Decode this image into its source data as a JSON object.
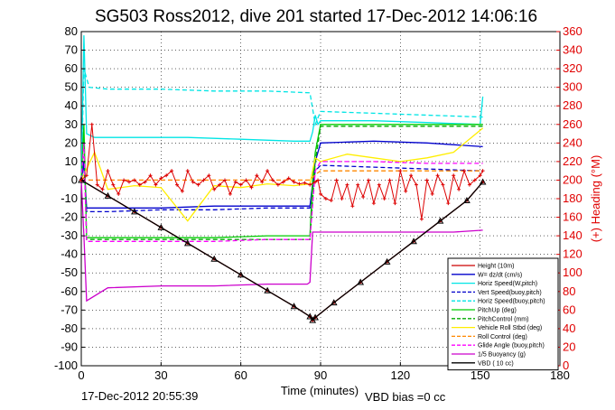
{
  "chart_data": {
    "type": "line",
    "title": "SG503 Ross2012, dive 201 started 17-Dec-2012 14:06:16",
    "xlabel": "Time (minutes)",
    "ylabel": "",
    "y2label": "(+) Heading (°M)",
    "xlim": [
      0,
      180
    ],
    "ylim": [
      -100,
      80
    ],
    "y2lim": [
      0,
      360
    ],
    "xticks": [
      0,
      30,
      60,
      90,
      120,
      150,
      180
    ],
    "yticks": [
      80,
      70,
      60,
      50,
      40,
      30,
      20,
      10,
      0,
      -10,
      -20,
      -30,
      -40,
      -50,
      -60,
      -70,
      -80,
      -90,
      -100
    ],
    "y2ticks": [
      360,
      340,
      320,
      300,
      280,
      260,
      240,
      220,
      200,
      180,
      160,
      140,
      120,
      100,
      80,
      60,
      40,
      20,
      0
    ],
    "grid": true,
    "legend_position": "bottom-right",
    "footer_left": "17-Dec-2012 20:55:39",
    "footer_right": "VBD bias =0 cc",
    "series": [
      {
        "name": "Height (10m)",
        "color": "#cc0000",
        "style": "solid",
        "marker": "dot",
        "x": [
          0,
          10,
          20,
          30,
          40,
          50,
          60,
          70,
          80,
          86,
          87,
          88,
          95,
          105,
          115,
          125,
          135,
          145,
          151
        ],
        "y": [
          0,
          -8.5,
          -17,
          -25.5,
          -34,
          -42.5,
          -51,
          -59.5,
          -68,
          -73.5,
          -75.5,
          -74,
          -66,
          -55,
          -44,
          -33,
          -22,
          -11,
          -1
        ]
      },
      {
        "name": "W= dz/dt (cm/s)",
        "color": "#0000cc",
        "style": "solid",
        "x": [
          0,
          1,
          2,
          10,
          30,
          50,
          70,
          85,
          86,
          88,
          90,
          110,
          130,
          151
        ],
        "y": [
          0,
          10,
          -15,
          -15,
          -15,
          -14,
          -14,
          -14,
          -14,
          10,
          20,
          21,
          20,
          18
        ]
      },
      {
        "name": "Horiz Speed(W,pitch)",
        "color": "#00e5e5",
        "style": "solid",
        "x": [
          0,
          1,
          2,
          5,
          20,
          40,
          60,
          80,
          86,
          87,
          88,
          89,
          90,
          110,
          130,
          150,
          151
        ],
        "y": [
          0,
          78,
          25,
          23,
          23,
          23,
          22,
          21,
          21,
          26,
          35,
          30,
          32,
          32,
          31,
          30,
          45
        ]
      },
      {
        "name": "Vert Speed(buoy,pitch)",
        "color": "#0000cc",
        "style": "dashed",
        "x": [
          0,
          1,
          2,
          10,
          30,
          50,
          70,
          86,
          88,
          90,
          110,
          130,
          151
        ],
        "y": [
          0,
          8,
          -17,
          -17,
          -16,
          -16,
          -15,
          -15,
          5,
          8,
          7,
          6,
          5
        ]
      },
      {
        "name": "Horiz Speed(buoy,pitch)",
        "color": "#00e5e5",
        "style": "dashed",
        "x": [
          0,
          1,
          3,
          10,
          30,
          50,
          70,
          86,
          88,
          90,
          110,
          130,
          151
        ],
        "y": [
          0,
          60,
          50,
          49,
          49,
          48,
          48,
          47,
          30,
          37,
          36,
          35,
          34
        ]
      },
      {
        "name": "PitchUp (deg)",
        "color": "#00cc00",
        "style": "solid",
        "x": [
          0,
          1,
          2,
          10,
          30,
          50,
          70,
          86,
          87,
          88,
          90,
          110,
          130,
          151
        ],
        "y": [
          0,
          30,
          -31,
          -31,
          -31,
          -31,
          -30,
          -30,
          0,
          15,
          30,
          30,
          30,
          30
        ]
      },
      {
        "name": "PitchControl (mm)",
        "color": "#00aa00",
        "style": "dashed",
        "x": [
          0,
          1,
          2,
          10,
          30,
          50,
          70,
          86,
          88,
          90,
          110,
          130,
          151
        ],
        "y": [
          0,
          20,
          -32,
          -32,
          -32,
          -32,
          -32,
          -32,
          10,
          29,
          29,
          29,
          29
        ]
      },
      {
        "name": "Vehicle Roll Stbd (deg)",
        "color": "#ffee00",
        "style": "solid",
        "x": [
          0,
          5,
          10,
          20,
          30,
          40,
          50,
          60,
          70,
          80,
          86,
          88,
          90,
          100,
          110,
          120,
          130,
          140,
          151
        ],
        "y": [
          0,
          15,
          -5,
          -3,
          -4,
          -22,
          -3,
          -4,
          -2,
          -3,
          -2,
          12,
          10,
          14,
          12,
          10,
          12,
          15,
          28
        ]
      },
      {
        "name": "Roll Control (deg)",
        "color": "#ff8800",
        "style": "dashed",
        "x": [
          0,
          10,
          30,
          50,
          70,
          86,
          88,
          90,
          110,
          130,
          151
        ],
        "y": [
          0,
          0,
          0,
          0,
          0,
          0,
          3,
          5,
          5,
          5,
          5
        ]
      },
      {
        "name": "Glide Angle (buoy,pitch)",
        "color": "#ff00ff",
        "style": "dashed",
        "x": [
          0,
          1,
          2,
          10,
          30,
          50,
          70,
          86,
          88,
          90,
          110,
          130,
          151
        ],
        "y": [
          0,
          20,
          -33,
          -33,
          -33,
          -33,
          -32,
          -32,
          5,
          10,
          10,
          9,
          9
        ]
      },
      {
        "name": "1/5 Buoyancy (g)",
        "color": "#cc00cc",
        "style": "solid",
        "x": [
          0,
          1,
          2,
          10,
          30,
          50,
          70,
          85,
          86,
          87,
          89,
          100,
          120,
          140,
          151
        ],
        "y": [
          0,
          -30,
          -65,
          -58,
          -57,
          -57,
          -56,
          -56,
          -55,
          -28,
          -28,
          -28,
          -28,
          -28,
          -27
        ]
      },
      {
        "name": "VBD ( 10 cc)",
        "color": "#000000",
        "style": "solid",
        "marker": "triangle",
        "x": [
          0,
          10,
          20,
          30,
          40,
          50,
          60,
          70,
          80,
          86,
          87,
          88,
          95,
          105,
          115,
          125,
          135,
          145,
          151
        ],
        "y": [
          0,
          -8.5,
          -17,
          -25.5,
          -34,
          -42.5,
          -51,
          -59.5,
          -68,
          -73.5,
          -75.5,
          -74,
          -66,
          -55,
          -44,
          -33,
          -22,
          -11,
          -1
        ]
      }
    ],
    "heading_series": {
      "name": "Heading",
      "color": "#dd0000",
      "axis": "right",
      "x": [
        0,
        2,
        4,
        6,
        8,
        10,
        12,
        14,
        16,
        18,
        20,
        22,
        24,
        26,
        28,
        30,
        32,
        34,
        36,
        38,
        40,
        42,
        44,
        46,
        48,
        50,
        52,
        54,
        56,
        58,
        60,
        62,
        64,
        66,
        68,
        70,
        72,
        74,
        76,
        78,
        80,
        82,
        84,
        86,
        88,
        89,
        90,
        92,
        94,
        96,
        98,
        100,
        102,
        104,
        106,
        108,
        110,
        112,
        114,
        116,
        118,
        120,
        122,
        124,
        126,
        128,
        130,
        132,
        134,
        136,
        138,
        140,
        142,
        144,
        146,
        148,
        150,
        151
      ],
      "y": [
        200,
        205,
        260,
        195,
        190,
        210,
        195,
        185,
        200,
        198,
        200,
        195,
        198,
        205,
        195,
        202,
        205,
        210,
        195,
        188,
        210,
        198,
        195,
        200,
        205,
        190,
        195,
        200,
        185,
        198,
        195,
        200,
        192,
        205,
        198,
        210,
        200,
        195,
        198,
        202,
        198,
        196,
        197,
        195,
        198,
        200,
        185,
        180,
        178,
        200,
        180,
        195,
        172,
        195,
        182,
        200,
        175,
        195,
        180,
        200,
        175,
        210,
        188,
        205,
        195,
        158,
        200,
        185,
        205,
        195,
        175,
        205,
        190,
        210,
        195,
        200,
        205,
        210
      ]
    }
  }
}
